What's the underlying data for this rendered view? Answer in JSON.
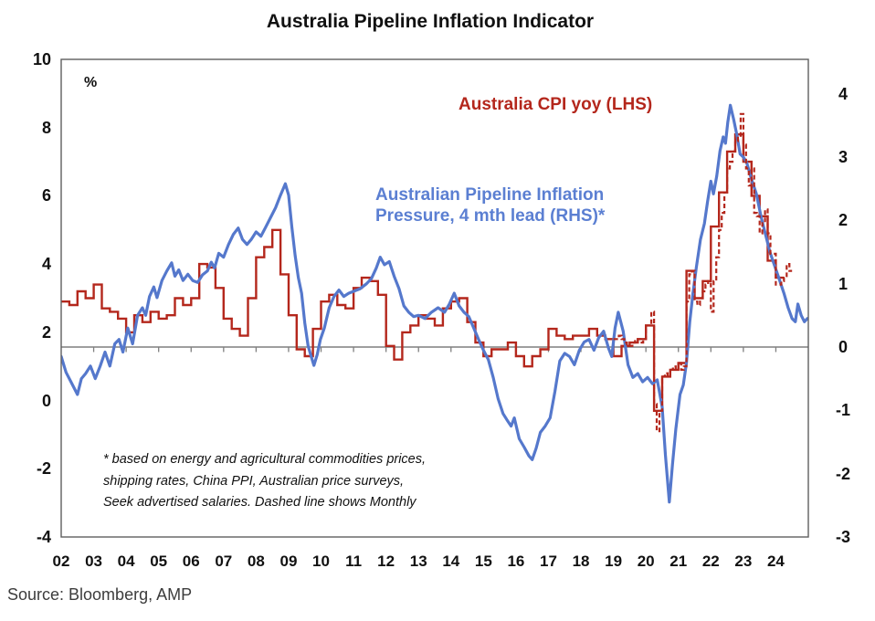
{
  "chart_data": {
    "type": "line",
    "title": "Australia Pipeline Inflation Indicator",
    "unit_label": "%",
    "source": "Source: Bloomberg, AMP",
    "legend": {
      "cpi_label": "Australia CPI yoy (LHS)",
      "pipeline_label_line1": "Australian Pipeline Inflation",
      "pipeline_label_line2": "Pressure, 4 mth lead (RHS)*"
    },
    "footnote": {
      "line1": "* based on energy and agricultural commodities prices,",
      "line2": "shipping rates, China PPI, Australian price surveys,",
      "line3": "Seek advertised salaries. Dashed line shows Monthly"
    },
    "colors": {
      "cpi": "#B4271C",
      "pipeline": "#5578CC",
      "zero_line": "#7f7f7f",
      "border": "#5f5f5f",
      "legend_blue": "#5B7FD2"
    },
    "left_axis": {
      "min": -4,
      "max": 10,
      "ticks": [
        10,
        8,
        6,
        4,
        2,
        0,
        -2,
        -4
      ]
    },
    "right_axis": {
      "min": -3,
      "max": 4,
      "ticks": [
        4,
        3,
        2,
        1,
        0,
        -1,
        -2,
        -3
      ]
    },
    "x_axis": {
      "start_year": 2002,
      "end_year": 2025,
      "labels": [
        "02",
        "03",
        "04",
        "05",
        "06",
        "07",
        "08",
        "09",
        "10",
        "11",
        "12",
        "13",
        "14",
        "15",
        "16",
        "17",
        "18",
        "19",
        "20",
        "21",
        "22",
        "23",
        "24"
      ]
    },
    "series": [
      {
        "name": "Australia CPI yoy (LHS)",
        "axis": "left",
        "style": "step-solid",
        "start": 2002,
        "period": 0.25,
        "values": [
          2.9,
          2.8,
          3.2,
          3.0,
          3.4,
          2.7,
          2.6,
          2.4,
          2.0,
          2.5,
          2.3,
          2.6,
          2.4,
          2.5,
          3.0,
          2.8,
          3.0,
          4.0,
          3.9,
          3.3,
          2.4,
          2.1,
          1.9,
          3.0,
          4.2,
          4.5,
          5.0,
          3.7,
          2.5,
          1.5,
          1.3,
          2.1,
          2.9,
          3.1,
          2.8,
          2.7,
          3.3,
          3.6,
          3.5,
          3.1,
          1.6,
          1.2,
          2.0,
          2.2,
          2.5,
          2.4,
          2.2,
          2.7,
          2.9,
          3.0,
          2.3,
          1.7,
          1.3,
          1.5,
          1.5,
          1.7,
          1.3,
          1.0,
          1.3,
          1.5,
          2.1,
          1.9,
          1.8,
          1.9,
          1.9,
          2.1,
          1.9,
          1.8,
          1.3,
          1.6,
          1.7,
          1.8,
          2.2,
          -0.3,
          0.7,
          0.9,
          1.1,
          3.8,
          3.0,
          3.5,
          5.1,
          6.1,
          7.3,
          7.8,
          7.0,
          6.0,
          5.4,
          4.1,
          3.6
        ]
      },
      {
        "name": "Australia CPI yoy monthly (LHS, dashed)",
        "axis": "left",
        "style": "step-dashed",
        "start": 2019,
        "period": 0.0833333,
        "values": [
          1.8,
          1.8,
          1.9,
          1.8,
          1.7,
          1.6,
          1.6,
          1.7,
          1.8,
          1.8,
          1.7,
          1.8,
          2.2,
          2.2,
          2.6,
          -0.1,
          -0.9,
          -0.3,
          0.7,
          0.8,
          0.7,
          0.9,
          1.0,
          0.9,
          1.1,
          0.9,
          1.0,
          2.9,
          3.7,
          3.8,
          2.9,
          2.8,
          3.0,
          3.2,
          3.4,
          3.5,
          2.6,
          3.5,
          4.2,
          5.0,
          5.5,
          6.1,
          6.8,
          7.0,
          7.3,
          7.6,
          7.7,
          8.4,
          7.5,
          6.8,
          6.3,
          6.8,
          5.5,
          5.4,
          4.9,
          5.2,
          5.6,
          4.9,
          4.3,
          4.3,
          3.4,
          3.4,
          3.5,
          3.6,
          4.0,
          3.8
        ]
      },
      {
        "name": "Australian Pipeline Inflation Pressure, 4 mth lead (RHS)",
        "axis": "right",
        "style": "line",
        "points": [
          [
            2002.0,
            -0.15
          ],
          [
            2002.15,
            -0.4
          ],
          [
            2002.3,
            -0.55
          ],
          [
            2002.5,
            -0.75
          ],
          [
            2002.62,
            -0.5
          ],
          [
            2002.75,
            -0.42
          ],
          [
            2002.9,
            -0.3
          ],
          [
            2003.05,
            -0.5
          ],
          [
            2003.2,
            -0.3
          ],
          [
            2003.35,
            -0.08
          ],
          [
            2003.5,
            -0.3
          ],
          [
            2003.65,
            0.05
          ],
          [
            2003.78,
            0.12
          ],
          [
            2003.9,
            -0.08
          ],
          [
            2004.05,
            0.3
          ],
          [
            2004.2,
            0.05
          ],
          [
            2004.35,
            0.5
          ],
          [
            2004.5,
            0.62
          ],
          [
            2004.6,
            0.5
          ],
          [
            2004.72,
            0.8
          ],
          [
            2004.85,
            0.95
          ],
          [
            2004.95,
            0.78
          ],
          [
            2005.1,
            1.05
          ],
          [
            2005.25,
            1.2
          ],
          [
            2005.4,
            1.33
          ],
          [
            2005.5,
            1.12
          ],
          [
            2005.62,
            1.22
          ],
          [
            2005.75,
            1.05
          ],
          [
            2005.9,
            1.15
          ],
          [
            2006.05,
            1.05
          ],
          [
            2006.2,
            1.02
          ],
          [
            2006.35,
            1.14
          ],
          [
            2006.5,
            1.2
          ],
          [
            2006.62,
            1.34
          ],
          [
            2006.72,
            1.25
          ],
          [
            2006.85,
            1.48
          ],
          [
            2007.0,
            1.42
          ],
          [
            2007.15,
            1.62
          ],
          [
            2007.3,
            1.78
          ],
          [
            2007.45,
            1.88
          ],
          [
            2007.58,
            1.7
          ],
          [
            2007.72,
            1.62
          ],
          [
            2007.85,
            1.7
          ],
          [
            2008.0,
            1.82
          ],
          [
            2008.15,
            1.75
          ],
          [
            2008.3,
            1.9
          ],
          [
            2008.45,
            2.05
          ],
          [
            2008.6,
            2.2
          ],
          [
            2008.75,
            2.4
          ],
          [
            2008.9,
            2.58
          ],
          [
            2009.0,
            2.4
          ],
          [
            2009.1,
            1.9
          ],
          [
            2009.2,
            1.45
          ],
          [
            2009.3,
            1.1
          ],
          [
            2009.4,
            0.85
          ],
          [
            2009.5,
            0.38
          ],
          [
            2009.6,
            0.02
          ],
          [
            2009.68,
            -0.12
          ],
          [
            2009.78,
            -0.29
          ],
          [
            2009.88,
            -0.12
          ],
          [
            2009.98,
            0.12
          ],
          [
            2010.1,
            0.3
          ],
          [
            2010.25,
            0.62
          ],
          [
            2010.4,
            0.8
          ],
          [
            2010.55,
            0.9
          ],
          [
            2010.7,
            0.8
          ],
          [
            2010.85,
            0.85
          ],
          [
            2011.0,
            0.88
          ],
          [
            2011.2,
            0.92
          ],
          [
            2011.4,
            1.0
          ],
          [
            2011.55,
            1.08
          ],
          [
            2011.7,
            1.25
          ],
          [
            2011.82,
            1.42
          ],
          [
            2011.95,
            1.3
          ],
          [
            2012.1,
            1.35
          ],
          [
            2012.25,
            1.12
          ],
          [
            2012.4,
            0.92
          ],
          [
            2012.55,
            0.65
          ],
          [
            2012.7,
            0.55
          ],
          [
            2012.85,
            0.48
          ],
          [
            2013.0,
            0.5
          ],
          [
            2013.2,
            0.45
          ],
          [
            2013.4,
            0.55
          ],
          [
            2013.6,
            0.62
          ],
          [
            2013.8,
            0.55
          ],
          [
            2013.95,
            0.68
          ],
          [
            2014.1,
            0.85
          ],
          [
            2014.25,
            0.65
          ],
          [
            2014.4,
            0.55
          ],
          [
            2014.55,
            0.48
          ],
          [
            2014.7,
            0.3
          ],
          [
            2014.85,
            0.12
          ],
          [
            2015.0,
            -0.05
          ],
          [
            2015.15,
            -0.2
          ],
          [
            2015.3,
            -0.48
          ],
          [
            2015.45,
            -0.82
          ],
          [
            2015.6,
            -1.05
          ],
          [
            2015.72,
            -1.15
          ],
          [
            2015.85,
            -1.25
          ],
          [
            2015.95,
            -1.12
          ],
          [
            2016.1,
            -1.45
          ],
          [
            2016.25,
            -1.58
          ],
          [
            2016.4,
            -1.72
          ],
          [
            2016.5,
            -1.78
          ],
          [
            2016.62,
            -1.6
          ],
          [
            2016.75,
            -1.35
          ],
          [
            2016.9,
            -1.25
          ],
          [
            2017.05,
            -1.12
          ],
          [
            2017.2,
            -0.7
          ],
          [
            2017.35,
            -0.22
          ],
          [
            2017.5,
            -0.1
          ],
          [
            2017.65,
            -0.15
          ],
          [
            2017.8,
            -0.28
          ],
          [
            2017.95,
            -0.05
          ],
          [
            2018.1,
            0.08
          ],
          [
            2018.25,
            0.12
          ],
          [
            2018.4,
            -0.05
          ],
          [
            2018.55,
            0.15
          ],
          [
            2018.7,
            0.25
          ],
          [
            2018.85,
            -0.02
          ],
          [
            2018.95,
            -0.15
          ],
          [
            2019.05,
            0.3
          ],
          [
            2019.15,
            0.55
          ],
          [
            2019.3,
            0.25
          ],
          [
            2019.45,
            -0.28
          ],
          [
            2019.6,
            -0.48
          ],
          [
            2019.75,
            -0.42
          ],
          [
            2019.9,
            -0.55
          ],
          [
            2020.05,
            -0.48
          ],
          [
            2020.2,
            -0.58
          ],
          [
            2020.35,
            -0.52
          ],
          [
            2020.5,
            -0.95
          ],
          [
            2020.6,
            -1.7
          ],
          [
            2020.72,
            -2.45
          ],
          [
            2020.82,
            -1.85
          ],
          [
            2020.92,
            -1.3
          ],
          [
            2021.05,
            -0.75
          ],
          [
            2021.15,
            -0.6
          ],
          [
            2021.25,
            -0.25
          ],
          [
            2021.35,
            0.4
          ],
          [
            2021.45,
            0.85
          ],
          [
            2021.55,
            1.25
          ],
          [
            2021.68,
            1.7
          ],
          [
            2021.8,
            1.95
          ],
          [
            2021.9,
            2.3
          ],
          [
            2022.0,
            2.62
          ],
          [
            2022.08,
            2.42
          ],
          [
            2022.18,
            2.7
          ],
          [
            2022.28,
            3.1
          ],
          [
            2022.38,
            3.32
          ],
          [
            2022.45,
            3.22
          ],
          [
            2022.52,
            3.55
          ],
          [
            2022.6,
            3.82
          ],
          [
            2022.7,
            3.6
          ],
          [
            2022.8,
            3.35
          ],
          [
            2022.9,
            3.05
          ],
          [
            2023.0,
            3.0
          ],
          [
            2023.1,
            2.92
          ],
          [
            2023.25,
            2.65
          ],
          [
            2023.4,
            2.42
          ],
          [
            2023.55,
            2.05
          ],
          [
            2023.68,
            1.78
          ],
          [
            2023.82,
            1.5
          ],
          [
            2023.95,
            1.3
          ],
          [
            2024.1,
            1.08
          ],
          [
            2024.25,
            0.85
          ],
          [
            2024.38,
            0.62
          ],
          [
            2024.5,
            0.45
          ],
          [
            2024.6,
            0.4
          ],
          [
            2024.68,
            0.68
          ],
          [
            2024.78,
            0.5
          ],
          [
            2024.88,
            0.4
          ],
          [
            2024.97,
            0.45
          ]
        ]
      }
    ]
  }
}
